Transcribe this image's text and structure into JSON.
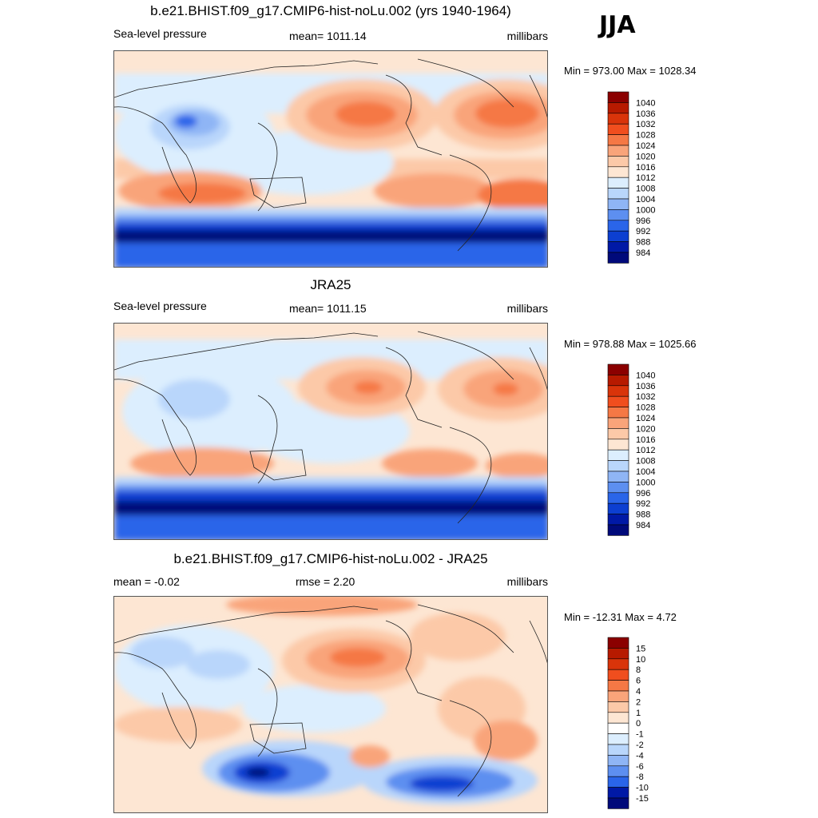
{
  "season": "JJA",
  "panels": [
    {
      "id": "model",
      "title": "b.e21.BHIST.f09_g17.CMIP6-hist-noLu.002 (yrs 1940-1964)",
      "left_label": "Sea-level pressure",
      "center_label": "mean= 1011.14",
      "right_label": "millibars",
      "minmax": "Min = 973.00 Max = 1028.34",
      "colorbar": {
        "labels": [
          "1040",
          "1036",
          "1032",
          "1028",
          "1024",
          "1020",
          "1016",
          "1012",
          "1008",
          "1004",
          "1000",
          "996",
          "992",
          "988",
          "984"
        ],
        "colors": [
          "#8b0000",
          "#b71a00",
          "#d9340a",
          "#f04e1e",
          "#f57845",
          "#f9a47a",
          "#fcc9a8",
          "#fde6d3",
          "#dceefe",
          "#b9d6fb",
          "#8fb5f5",
          "#5d8ff0",
          "#2a65e9",
          "#0c3fd1",
          "#0019a6",
          "#000a7a"
        ]
      },
      "features": [
        "North Pacific high",
        "North Atlantic high",
        "South Pacific high",
        "South Indian high",
        "South Atlantic high",
        "Asian low",
        "Southern Ocean trough"
      ]
    },
    {
      "id": "obs",
      "title": "JRA25",
      "left_label": "Sea-level pressure",
      "center_label": "mean= 1011.15",
      "right_label": "millibars",
      "minmax": "Min = 978.88 Max = 1025.66",
      "colorbar": {
        "labels": [
          "1040",
          "1036",
          "1032",
          "1028",
          "1024",
          "1020",
          "1016",
          "1012",
          "1008",
          "1004",
          "1000",
          "996",
          "992",
          "988",
          "984"
        ],
        "colors": [
          "#8b0000",
          "#b71a00",
          "#d9340a",
          "#f04e1e",
          "#f57845",
          "#f9a47a",
          "#fcc9a8",
          "#fde6d3",
          "#dceefe",
          "#b9d6fb",
          "#8fb5f5",
          "#5d8ff0",
          "#2a65e9",
          "#0c3fd1",
          "#0019a6",
          "#000a7a"
        ]
      }
    },
    {
      "id": "diff",
      "title": "b.e21.BHIST.f09_g17.CMIP6-hist-noLu.002 - JRA25",
      "left_label": "mean =  -0.02",
      "center_label": "rmse =   2.20",
      "right_label": "millibars",
      "minmax": "Min = -12.31 Max =   4.72",
      "colorbar": {
        "labels": [
          "15",
          "10",
          "8",
          "6",
          "4",
          "2",
          "1",
          "0",
          "-1",
          "-2",
          "-4",
          "-6",
          "-8",
          "-10",
          "-15"
        ],
        "colors": [
          "#8b0000",
          "#b71a00",
          "#d9340a",
          "#f04e1e",
          "#f57845",
          "#f9a47a",
          "#fcc9a8",
          "#fde6d3",
          "#ffffff",
          "#dceefe",
          "#b9d6fb",
          "#8fb5f5",
          "#5d8ff0",
          "#2a65e9",
          "#0019a6",
          "#000a7a"
        ]
      }
    }
  ]
}
